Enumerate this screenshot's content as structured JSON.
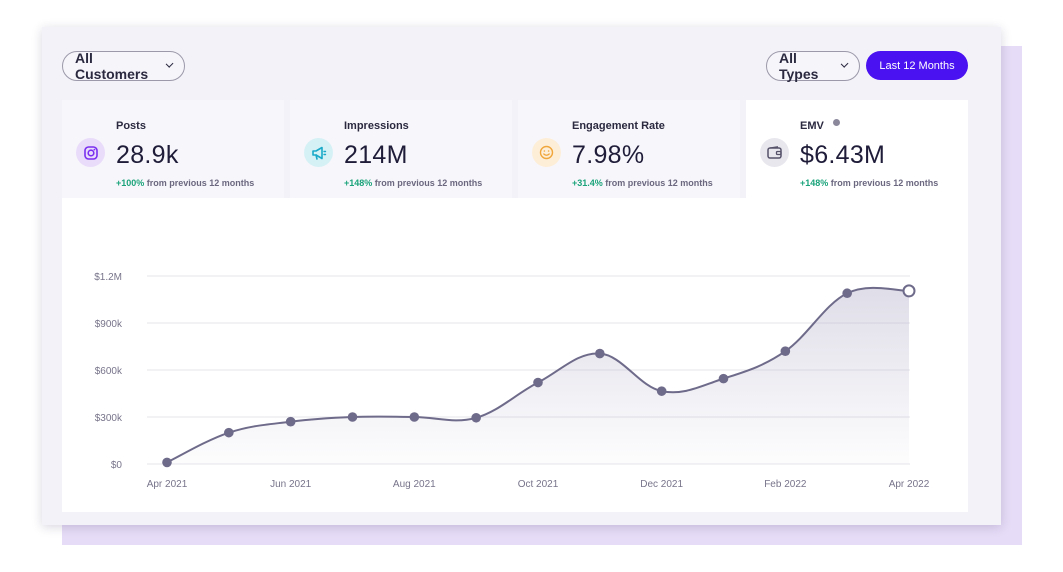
{
  "filters": {
    "customers": "All Customers",
    "types": "All Types",
    "period": "Last 12 Months"
  },
  "stats": [
    {
      "label": "Posts",
      "value": "28.9k",
      "delta_pct": "+100%",
      "delta_text": " from previous 12 months",
      "icon": "instagram-icon",
      "icon_bg": "#e9dcfb",
      "icon_color": "#7b2ff0"
    },
    {
      "label": "Impressions",
      "value": "214M",
      "delta_pct": "+148%",
      "delta_text": " from previous 12 months",
      "icon": "megaphone-icon",
      "icon_bg": "#d6f1f6",
      "icon_color": "#1aa9c8"
    },
    {
      "label": "Engagement Rate",
      "value": "7.98%",
      "delta_pct": "+31.4%",
      "delta_text": " from previous 12 months",
      "icon": "smiley-icon",
      "icon_bg": "#fdeed8",
      "icon_color": "#f0a63a"
    },
    {
      "label": "EMV",
      "value": "$6.43M",
      "delta_pct": "+148%",
      "delta_text": " from previous 12 months",
      "icon": "wallet-icon",
      "icon_bg": "#e8e7ee",
      "icon_color": "#55526a"
    }
  ],
  "colors": {
    "accent": "#4a12f0",
    "positive": "#1aa37a",
    "line": "#6e6a8a"
  },
  "chart_data": {
    "type": "area",
    "x": [
      "Apr 2021",
      "May 2021",
      "Jun 2021",
      "Jul 2021",
      "Aug 2021",
      "Sep 2021",
      "Oct 2021",
      "Nov 2021",
      "Dec 2021",
      "Jan 2022",
      "Feb 2022",
      "Mar 2022",
      "Apr 2022"
    ],
    "tick_labels": [
      "Apr 2021",
      "Jun 2021",
      "Aug 2021",
      "Oct 2021",
      "Dec 2021",
      "Feb 2022",
      "Apr 2022"
    ],
    "y_ticks": [
      "$0",
      "$300k",
      "$600k",
      "$900k",
      "$1.2M"
    ],
    "values": [
      10000,
      200000,
      270000,
      300000,
      300000,
      295000,
      520000,
      705000,
      465000,
      545000,
      720000,
      1090000,
      1105000
    ],
    "ylim": [
      0,
      1200000
    ],
    "grid": true,
    "title": "",
    "xlabel": "",
    "ylabel": ""
  }
}
